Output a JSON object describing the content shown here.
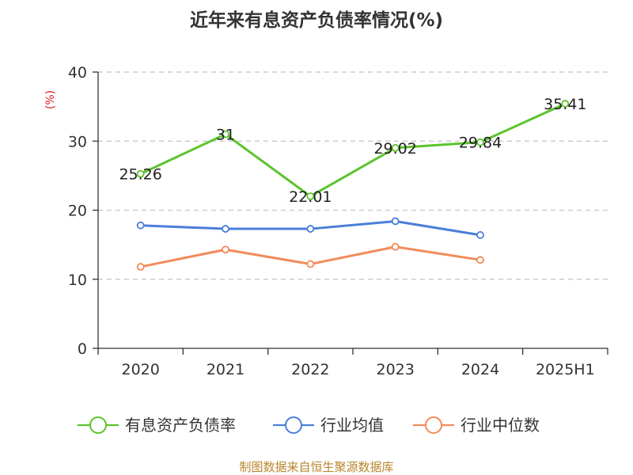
{
  "chart_data": {
    "type": "line",
    "title": "近年来有息资产负债率情况(%)",
    "ylabel": "(%)",
    "xlabel": "",
    "categories": [
      "2020",
      "2021",
      "2022",
      "2023",
      "2024",
      "2025H1"
    ],
    "ylim": [
      0,
      40
    ],
    "yticks": [
      0,
      10,
      20,
      30,
      40
    ],
    "grid": true,
    "legend_position": "bottom",
    "series": [
      {
        "name": "有息资产负债率",
        "color": "#5cc42c",
        "values": [
          25.26,
          31,
          22.01,
          29.02,
          29.84,
          35.41
        ],
        "show_labels": true
      },
      {
        "name": "行业均值",
        "color": "#4a7fd8",
        "values": [
          17.8,
          17.3,
          17.3,
          18.4,
          16.4,
          null
        ],
        "show_labels": false
      },
      {
        "name": "行业中位数",
        "color": "#f28b5a",
        "values": [
          11.8,
          14.3,
          12.2,
          14.7,
          12.8,
          null
        ],
        "show_labels": false
      }
    ],
    "source": "制图数据来自恒生聚源数据库"
  }
}
